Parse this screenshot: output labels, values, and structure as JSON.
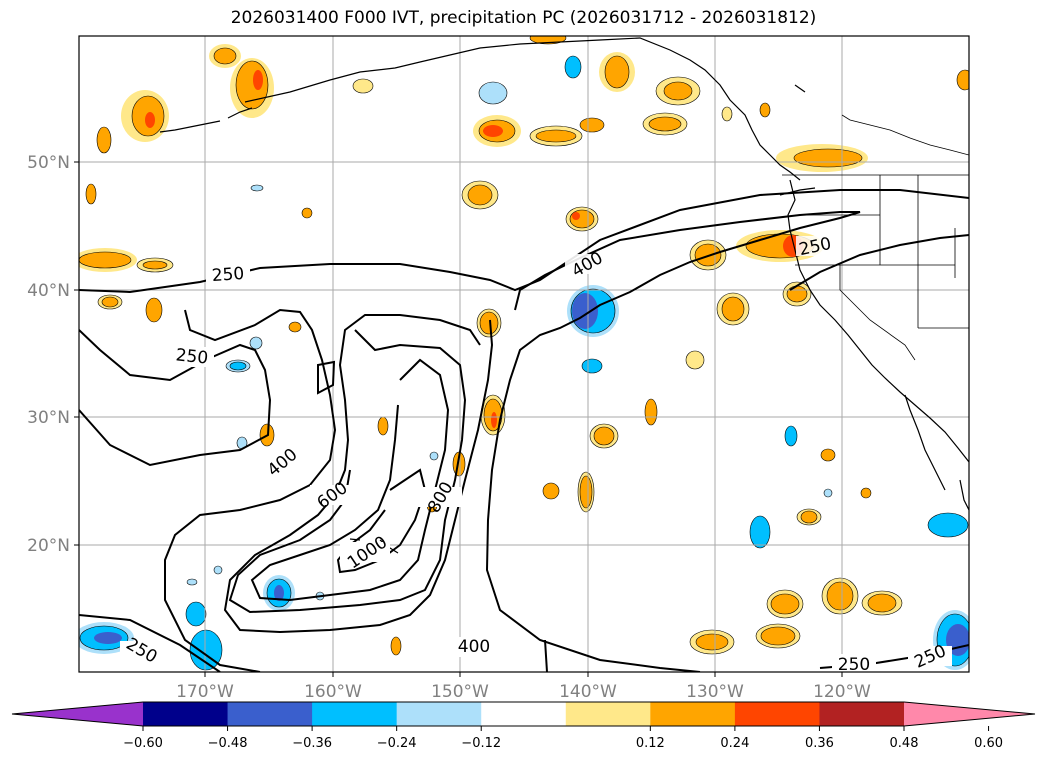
{
  "title": "2026031400 F000 IVT, precipitation PC (2026031712 - 2026031812)",
  "axes": {
    "lat_labels": [
      "50°N",
      "40°N",
      "30°N",
      "20°N"
    ],
    "lon_labels": [
      "170°W",
      "160°W",
      "150°W",
      "140°W",
      "130°W",
      "120°W"
    ]
  },
  "contour_labels": [
    {
      "text": "250",
      "id": "a"
    },
    {
      "text": "250",
      "id": "b"
    },
    {
      "text": "250",
      "id": "c"
    },
    {
      "text": "250",
      "id": "d"
    },
    {
      "text": "250",
      "id": "e"
    },
    {
      "text": "250",
      "id": "f"
    },
    {
      "text": "400",
      "id": "g"
    },
    {
      "text": "400",
      "id": "h"
    },
    {
      "text": "400",
      "id": "i"
    },
    {
      "text": "600",
      "id": "j"
    },
    {
      "text": "800",
      "id": "k"
    },
    {
      "text": "1000",
      "id": "l"
    }
  ],
  "colorbar": {
    "colors": [
      "#9932CC",
      "#00008B",
      "#3A5FCD",
      "#00BFFF",
      "#ADE0FA",
      "#FFFFFF",
      "#FFE88A",
      "#FFA500",
      "#FF4500",
      "#B22222",
      "#FF88AA"
    ],
    "tick_labels": [
      "−0.60",
      "−0.48",
      "−0.36",
      "−0.24",
      "−0.12",
      "0.12",
      "0.24",
      "0.36",
      "0.48",
      "0.60"
    ]
  }
}
